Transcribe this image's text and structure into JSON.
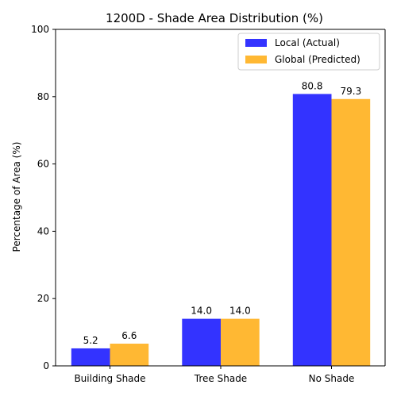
{
  "chart_data": {
    "type": "bar",
    "title": "1200D - Shade Area Distribution (%)",
    "xlabel": "",
    "ylabel": "Percentage of Area (%)",
    "categories": [
      "Building Shade",
      "Tree Shade",
      "No Shade"
    ],
    "series": [
      {
        "name": "Local (Actual)",
        "values": [
          5.2,
          14.0,
          80.8
        ],
        "labels": [
          "5.2",
          "14.0",
          "80.8"
        ],
        "color": "#3333ff"
      },
      {
        "name": "Global (Predicted)",
        "values": [
          6.6,
          14.0,
          79.3
        ],
        "labels": [
          "6.6",
          "14.0",
          "79.3"
        ],
        "color": "#ffb833"
      }
    ],
    "ylim": [
      0,
      100
    ],
    "yticks": [
      0,
      20,
      40,
      60,
      80,
      100
    ],
    "grid": false,
    "legend_position": "top-right"
  }
}
